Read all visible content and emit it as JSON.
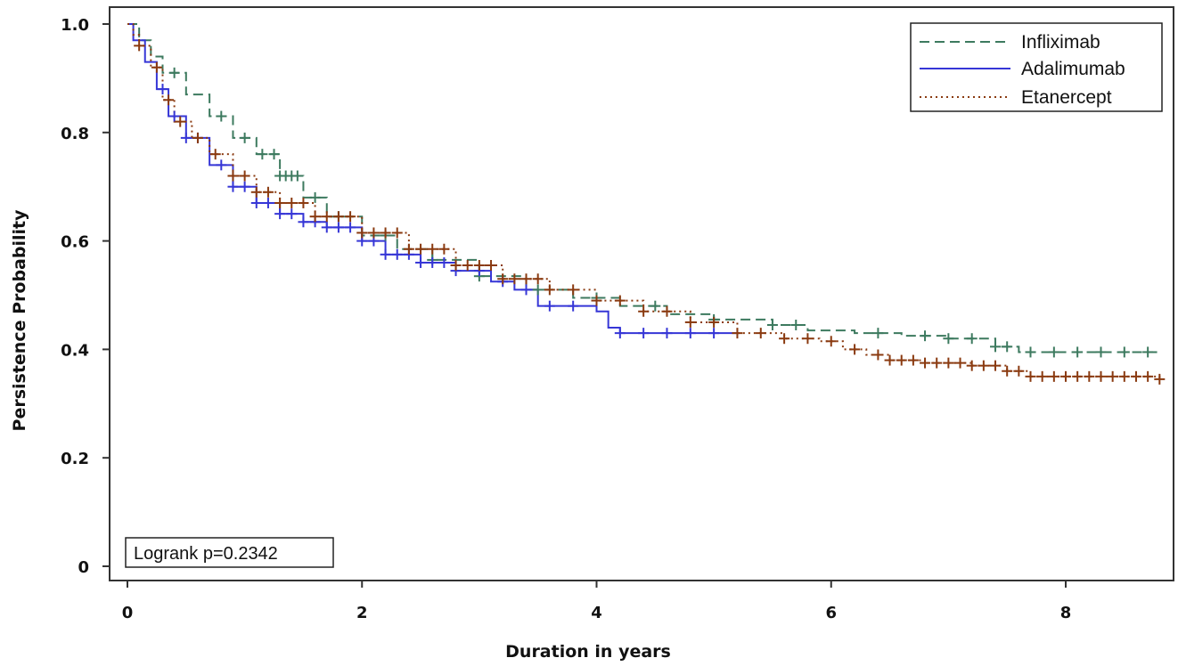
{
  "chart_data": {
    "type": "line",
    "title": "",
    "xlabel": "Duration in years",
    "ylabel": "Persistence Probability",
    "xlim": [
      0,
      8.8
    ],
    "ylim": [
      0,
      1.0
    ],
    "x_ticks": [
      "0",
      "2",
      "4",
      "6",
      "8"
    ],
    "y_ticks": [
      "0",
      "0.2",
      "0.4",
      "0.6",
      "0.8",
      "1.0"
    ],
    "grid": false,
    "legend_position": "top-right",
    "annotation": "Logrank p=0.2342",
    "series": [
      {
        "name": "Infliximab",
        "color": "#3d7a5f",
        "dash": "dashed",
        "points": [
          [
            0,
            1.0
          ],
          [
            0.1,
            0.97
          ],
          [
            0.2,
            0.94
          ],
          [
            0.3,
            0.91
          ],
          [
            0.5,
            0.87
          ],
          [
            0.7,
            0.83
          ],
          [
            0.9,
            0.79
          ],
          [
            1.1,
            0.76
          ],
          [
            1.3,
            0.72
          ],
          [
            1.5,
            0.68
          ],
          [
            1.7,
            0.645
          ],
          [
            2.0,
            0.61
          ],
          [
            2.3,
            0.585
          ],
          [
            2.6,
            0.565
          ],
          [
            3.0,
            0.535
          ],
          [
            3.4,
            0.51
          ],
          [
            3.8,
            0.495
          ],
          [
            4.2,
            0.48
          ],
          [
            4.6,
            0.465
          ],
          [
            5.0,
            0.455
          ],
          [
            5.5,
            0.445
          ],
          [
            5.8,
            0.435
          ],
          [
            6.2,
            0.43
          ],
          [
            6.6,
            0.425
          ],
          [
            7.0,
            0.42
          ],
          [
            7.4,
            0.405
          ],
          [
            7.6,
            0.395
          ],
          [
            8.0,
            0.395
          ],
          [
            8.8,
            0.395
          ]
        ],
        "censor_x": [
          0.4,
          0.8,
          1.0,
          1.15,
          1.25,
          1.3,
          1.35,
          1.4,
          1.45,
          1.6,
          1.8,
          2.2,
          2.6,
          3.0,
          3.5,
          4.0,
          4.5,
          5.0,
          5.5,
          5.7,
          6.4,
          6.8,
          7.0,
          7.2,
          7.4,
          7.5,
          7.7,
          7.9,
          8.1,
          8.3,
          8.5,
          8.7
        ]
      },
      {
        "name": "Adalimumab",
        "color": "#3636d6",
        "dash": "solid",
        "points": [
          [
            0,
            1.0
          ],
          [
            0.05,
            0.97
          ],
          [
            0.15,
            0.93
          ],
          [
            0.25,
            0.88
          ],
          [
            0.35,
            0.83
          ],
          [
            0.5,
            0.79
          ],
          [
            0.7,
            0.74
          ],
          [
            0.9,
            0.7
          ],
          [
            1.1,
            0.67
          ],
          [
            1.3,
            0.65
          ],
          [
            1.5,
            0.635
          ],
          [
            1.7,
            0.625
          ],
          [
            2.0,
            0.6
          ],
          [
            2.2,
            0.575
          ],
          [
            2.5,
            0.56
          ],
          [
            2.8,
            0.545
          ],
          [
            3.1,
            0.525
          ],
          [
            3.3,
            0.51
          ],
          [
            3.5,
            0.48
          ],
          [
            3.8,
            0.48
          ],
          [
            4.0,
            0.47
          ],
          [
            4.1,
            0.44
          ],
          [
            4.2,
            0.43
          ],
          [
            4.5,
            0.43
          ],
          [
            5.2,
            0.43
          ]
        ],
        "censor_x": [
          0.3,
          0.4,
          0.5,
          0.6,
          0.8,
          0.9,
          1.0,
          1.1,
          1.2,
          1.3,
          1.4,
          1.5,
          1.6,
          1.7,
          1.8,
          1.9,
          2.0,
          2.1,
          2.2,
          2.3,
          2.4,
          2.5,
          2.6,
          2.7,
          2.8,
          3.0,
          3.2,
          3.4,
          3.6,
          3.8,
          4.2,
          4.4,
          4.6,
          4.8,
          5.0
        ]
      },
      {
        "name": "Etanercept",
        "color": "#8a3a10",
        "dash": "dotted",
        "points": [
          [
            0,
            1.0
          ],
          [
            0.05,
            0.98
          ],
          [
            0.1,
            0.96
          ],
          [
            0.2,
            0.92
          ],
          [
            0.3,
            0.86
          ],
          [
            0.4,
            0.82
          ],
          [
            0.55,
            0.79
          ],
          [
            0.7,
            0.76
          ],
          [
            0.9,
            0.72
          ],
          [
            1.1,
            0.69
          ],
          [
            1.3,
            0.67
          ],
          [
            1.6,
            0.645
          ],
          [
            2.0,
            0.615
          ],
          [
            2.4,
            0.585
          ],
          [
            2.8,
            0.555
          ],
          [
            3.2,
            0.53
          ],
          [
            3.6,
            0.51
          ],
          [
            4.0,
            0.49
          ],
          [
            4.4,
            0.47
          ],
          [
            4.8,
            0.45
          ],
          [
            5.2,
            0.43
          ],
          [
            5.6,
            0.42
          ],
          [
            5.9,
            0.415
          ],
          [
            6.1,
            0.4
          ],
          [
            6.3,
            0.39
          ],
          [
            6.5,
            0.38
          ],
          [
            6.8,
            0.375
          ],
          [
            7.2,
            0.37
          ],
          [
            7.5,
            0.36
          ],
          [
            7.7,
            0.35
          ],
          [
            8.0,
            0.35
          ],
          [
            8.8,
            0.345
          ]
        ],
        "censor_x": [
          0.1,
          0.25,
          0.35,
          0.45,
          0.6,
          0.75,
          0.9,
          1.0,
          1.1,
          1.2,
          1.3,
          1.4,
          1.5,
          1.6,
          1.7,
          1.8,
          1.9,
          2.0,
          2.1,
          2.2,
          2.3,
          2.4,
          2.5,
          2.6,
          2.7,
          2.8,
          2.9,
          3.0,
          3.1,
          3.2,
          3.3,
          3.4,
          3.5,
          3.6,
          3.8,
          4.0,
          4.2,
          4.4,
          4.6,
          4.8,
          5.0,
          5.2,
          5.4,
          5.6,
          5.8,
          6.0,
          6.2,
          6.4,
          6.5,
          6.6,
          6.7,
          6.8,
          6.9,
          7.0,
          7.1,
          7.2,
          7.3,
          7.4,
          7.5,
          7.6,
          7.7,
          7.8,
          7.9,
          8.0,
          8.1,
          8.2,
          8.3,
          8.4,
          8.5,
          8.6,
          8.7,
          8.8
        ]
      }
    ]
  }
}
